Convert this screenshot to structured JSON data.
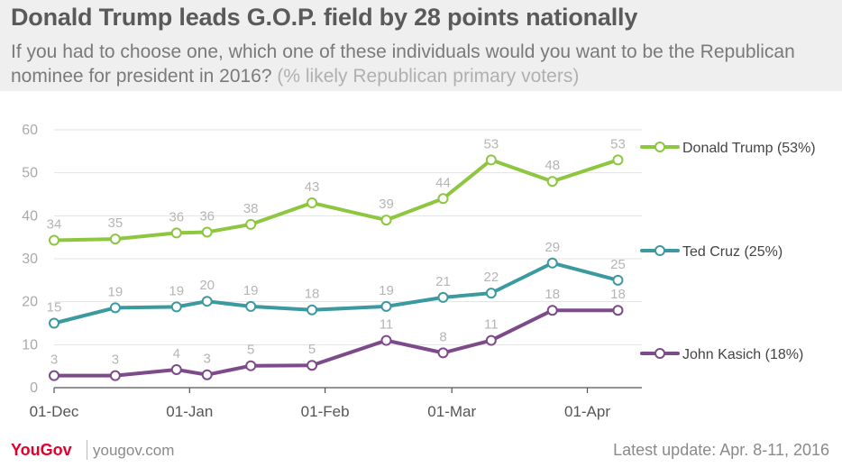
{
  "header": {
    "title": "Donald Trump leads G.O.P. field by 28 points nationally",
    "subtitle": "If you had to choose one, which one of these individuals would you want to be the Republican nominee for president in 2016?",
    "subtitle_note": "(% likely Republican primary voters)"
  },
  "footer": {
    "logo": "YouGov",
    "site": "yougov.com",
    "update": "Latest update: Apr. 8-11, 2016"
  },
  "chart_data": {
    "type": "line",
    "x": [
      "2015-12-01",
      "2015-12-15",
      "2015-12-29",
      "2016-01-05",
      "2016-01-15",
      "2016-01-29",
      "2016-02-15",
      "2016-02-28",
      "2016-03-10",
      "2016-03-24",
      "2016-04-08"
    ],
    "xticks": [
      "01-Dec",
      "01-Jan",
      "01-Feb",
      "01-Mar",
      "01-Apr"
    ],
    "yticks": [
      0,
      10,
      20,
      30,
      40,
      50,
      60
    ],
    "ylim": [
      0,
      60
    ],
    "grid": true,
    "legend_position": "right",
    "series": [
      {
        "name": "Donald Trump (53%)",
        "color": "#8dc63f",
        "values": [
          34.3,
          34.6,
          36.0,
          36.2,
          38.0,
          43.0,
          39.0,
          44.0,
          53.0,
          48.0,
          53.0
        ],
        "labels": [
          "34",
          "35",
          "36",
          "36",
          "38",
          "43",
          "39",
          "44",
          "53",
          "48",
          "53"
        ]
      },
      {
        "name": "Ted Cruz (25%)",
        "color": "#3b9aa0",
        "values": [
          15.0,
          18.6,
          18.8,
          20.1,
          18.9,
          18.1,
          18.9,
          21.0,
          22.0,
          29.0,
          25.0
        ],
        "labels": [
          "15",
          "19",
          "19",
          "20",
          "19",
          "18",
          "19",
          "21",
          "22",
          "29",
          "25"
        ]
      },
      {
        "name": "John Kasich (18%)",
        "color": "#7d4a8a",
        "values": [
          2.8,
          2.8,
          4.2,
          3.0,
          5.1,
          5.2,
          11.0,
          8.1,
          11.0,
          18.0,
          18.0
        ],
        "labels": [
          "3",
          "3",
          "4",
          "3",
          "5",
          "5",
          "11",
          "8",
          "11",
          "18",
          "18"
        ]
      }
    ]
  }
}
